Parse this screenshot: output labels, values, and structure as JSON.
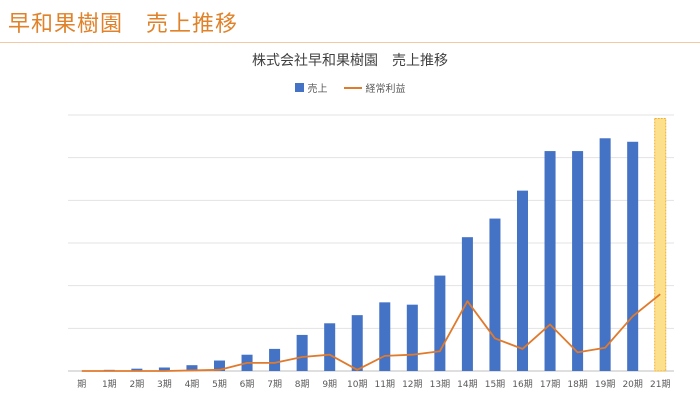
{
  "slide": {
    "title": "早和果樹園　売上推移"
  },
  "chart_data": {
    "type": "bar",
    "title": "株式会社早和果樹園　売上推移",
    "categories": [
      "期",
      "1期",
      "2期",
      "3期",
      "4期",
      "5期",
      "6期",
      "7期",
      "8期",
      "9期",
      "10期",
      "11期",
      "12期",
      "13期",
      "14期",
      "15期",
      "16期",
      "17期",
      "18期",
      "19期",
      "20期",
      "21期"
    ],
    "series": [
      {
        "name": "売上",
        "type": "bar",
        "color": "#4472c4",
        "values": [
          0,
          1,
          2,
          3,
          5,
          9,
          14,
          19,
          31,
          41,
          48,
          59,
          57,
          82,
          115,
          131,
          155,
          189,
          189,
          200,
          197,
          217
        ]
      },
      {
        "name": "経常利益",
        "type": "line",
        "color": "#e07a2c",
        "values": [
          0,
          0,
          0,
          0,
          0.5,
          1,
          7,
          7,
          12,
          14,
          1,
          13,
          14,
          17,
          60,
          28,
          19,
          40,
          16,
          20,
          47,
          66
        ]
      }
    ],
    "highlight": {
      "category": "21期",
      "fill": "#fde08c",
      "border": "#f0b030"
    },
    "ylim": [
      0,
      220
    ],
    "gridlines": true,
    "legend_position": "top"
  }
}
